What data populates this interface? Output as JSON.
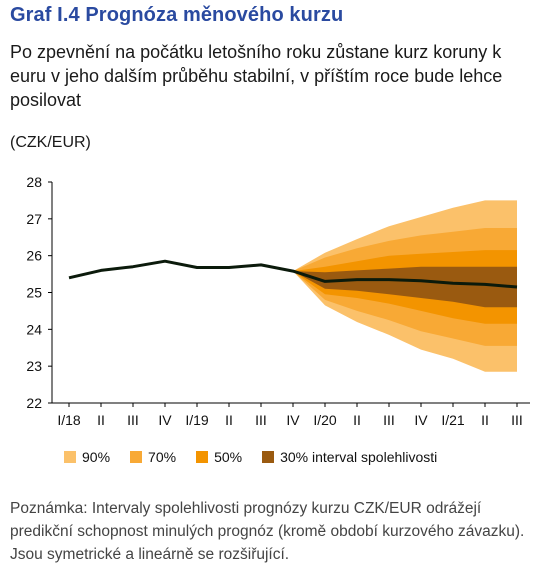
{
  "header": {
    "title": "Graf I.4  Prognóza měnového kurzu",
    "subtitle": "Po zpevnění na počátku letošního roku zůstane kurz koruny k euru v jeho dalším průběhu stabilní, v příštím roce bude lehce posilovat",
    "unit": "(CZK/EUR)"
  },
  "footnote": "Poznámka: Intervaly spolehlivosti prognózy kurzu CZK/EUR odrážejí predikční schopnost minulých prognóz (kromě období kurzového závazku). Jsou symetrické a lineárně se rozšiřující.",
  "colors": {
    "line": "#0b1a0b",
    "band90": "#fbc16a",
    "band70": "#f8a935",
    "band50": "#f39400",
    "band30": "#9a5a10",
    "title": "#2a4aa0"
  },
  "legend": [
    {
      "label": "90%",
      "color": "#fbc16a"
    },
    {
      "label": "70%",
      "color": "#f8a935"
    },
    {
      "label": "50%",
      "color": "#f39400"
    },
    {
      "label": "30% interval spolehlivosti",
      "color": "#9a5a10"
    }
  ],
  "chart_data": {
    "type": "line",
    "categories": [
      "I/18",
      "II",
      "III",
      "IV",
      "I/19",
      "II",
      "III",
      "IV",
      "I/20",
      "II",
      "III",
      "IV",
      "I/21",
      "II",
      "III"
    ],
    "ylim": [
      22,
      28
    ],
    "yticks": [
      22,
      23,
      24,
      25,
      26,
      27,
      28
    ],
    "grid": false,
    "series": [
      {
        "values": [
          25.4,
          25.6,
          25.7,
          25.85,
          25.68,
          25.68,
          25.75,
          25.58,
          25.3,
          25.35,
          25.35,
          25.32,
          25.25,
          25.22,
          25.15
        ]
      }
    ],
    "fan": {
      "start_index": 7,
      "bands": [
        {
          "name": "90%",
          "upper": [
            25.58,
            26.08,
            26.45,
            26.8,
            27.05,
            27.3,
            27.5,
            27.5
          ],
          "lower": [
            25.58,
            24.65,
            24.2,
            23.85,
            23.45,
            23.2,
            22.85,
            22.85
          ]
        },
        {
          "name": "70%",
          "upper": [
            25.58,
            25.95,
            26.2,
            26.4,
            26.55,
            26.65,
            26.75,
            26.75
          ],
          "lower": [
            25.58,
            24.8,
            24.5,
            24.25,
            23.95,
            23.75,
            23.55,
            23.55
          ]
        },
        {
          "name": "50%",
          "upper": [
            25.58,
            25.7,
            25.85,
            26.0,
            26.05,
            26.1,
            26.15,
            26.15
          ],
          "lower": [
            25.58,
            24.95,
            24.85,
            24.7,
            24.5,
            24.3,
            24.15,
            24.15
          ]
        },
        {
          "name": "30%",
          "upper": [
            25.58,
            25.55,
            25.6,
            25.65,
            25.7,
            25.7,
            25.7,
            25.7
          ],
          "lower": [
            25.58,
            25.1,
            25.05,
            24.95,
            24.85,
            24.75,
            24.6,
            24.6
          ]
        }
      ]
    }
  }
}
